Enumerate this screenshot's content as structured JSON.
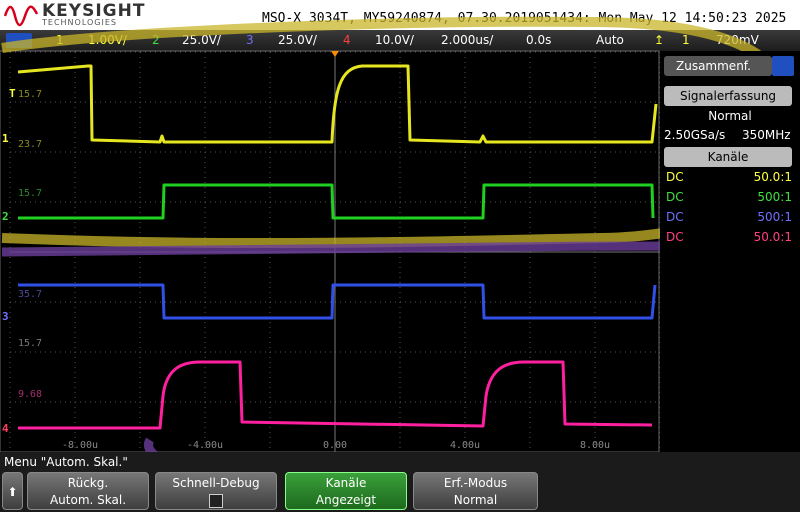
{
  "header": {
    "brand": "KEYSIGHT",
    "brand_sub": "TECHNOLOGIES",
    "instrument": "MSO-X 3034T, MY59240874, 07.30.2019051434: Mon May 12 14:50:23 2025"
  },
  "status_bar": {
    "ch1_num": "1",
    "ch1_scale": "1.00V/",
    "ch2_num": "2",
    "ch2_scale": "25.0V/",
    "ch3_num": "3",
    "ch3_scale": "25.0V/",
    "ch4_num": "4",
    "ch4_scale": "10.0V/",
    "timebase": "2.000us/",
    "delay": "0.0s",
    "trigger_mode": "Auto",
    "trigger_source": "1",
    "trigger_level": "720mV"
  },
  "graticule": {
    "y_labels": [
      "15.7",
      "23.7",
      "15.7",
      "35.7",
      "15.7",
      "9.68"
    ],
    "x_labels": [
      "-8.00u",
      "-4.00u",
      "0.00",
      "4.00u",
      "8.00u"
    ],
    "markers": [
      "T",
      "1",
      "2",
      "3",
      "4"
    ]
  },
  "side_panel": {
    "title": "Zusammenf.",
    "acquisition_header": "Signalerfassung",
    "acquisition_mode": "Normal",
    "sample_rate": "2.50GSa/s",
    "bandwidth": "350MHz",
    "channels_header": "Kanäle",
    "channels": [
      {
        "coupling": "DC",
        "probe": "50.0:1"
      },
      {
        "coupling": "DC",
        "probe": "500:1"
      },
      {
        "coupling": "DC",
        "probe": "500:1"
      },
      {
        "coupling": "DC",
        "probe": "50.0:1"
      }
    ]
  },
  "menu": {
    "title": "Menu \"Autom. Skal.\"",
    "softkeys": [
      {
        "label": "Rückg.",
        "value": "Autom. Skal."
      },
      {
        "label": "Schnell-Debug"
      },
      {
        "label": "Kanäle",
        "value": "Angezeigt"
      },
      {
        "label": "Erf.-Modus",
        "value": "Normal"
      }
    ]
  }
}
